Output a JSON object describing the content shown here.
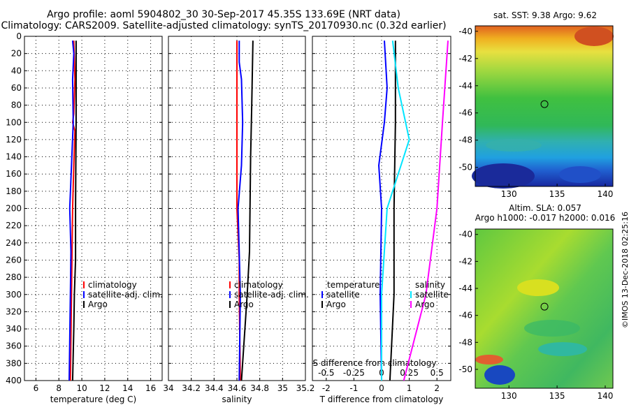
{
  "titles": {
    "line1": "Argo profile: aoml 5904802_30 30-Sep-2017 45.35S 133.69E (NRT data)",
    "line2": "Climatology: CARS2009. Satellite-adjusted climatology: synTS_20170930.nc (0.32d earlier)"
  },
  "colors": {
    "climatology": "#ff0000",
    "satellite": "#0000ff",
    "argo": "#000000",
    "satellite_diff": "#00e5ff",
    "argo_sal_diff": "#ff00ff"
  },
  "chart_data": [
    {
      "type": "line",
      "id": "temperature",
      "xlabel": "temperature (deg C)",
      "ylabel": "",
      "xlim": [
        5,
        17
      ],
      "ylim": [
        400,
        0
      ],
      "xticks": [
        "6",
        "8",
        "10",
        "12",
        "14",
        "16"
      ],
      "yticks": [
        "0",
        "20",
        "40",
        "60",
        "80",
        "100",
        "120",
        "140",
        "160",
        "180",
        "200",
        "220",
        "240",
        "260",
        "280",
        "300",
        "320",
        "340",
        "360",
        "380",
        "400"
      ],
      "legend": [
        "climatology",
        "satellite-adj. clim.",
        "Argo"
      ],
      "series": [
        {
          "name": "climatology",
          "depth": [
            5,
            50,
            90,
            100,
            110,
            150,
            200,
            300,
            400
          ],
          "values": [
            9.3,
            9.4,
            9.3,
            9.2,
            9.4,
            9.3,
            9.2,
            9.1,
            9.0
          ]
        },
        {
          "name": "satellite-adj. clim.",
          "depth": [
            5,
            20,
            50,
            100,
            150,
            200,
            250,
            300,
            400
          ],
          "values": [
            9.2,
            9.3,
            9.2,
            9.25,
            9.1,
            8.95,
            9.05,
            9.0,
            8.9
          ]
        },
        {
          "name": "Argo",
          "depth": [
            5,
            100,
            200,
            260,
            300,
            340,
            400
          ],
          "values": [
            9.5,
            9.5,
            9.45,
            9.45,
            9.35,
            9.3,
            9.2
          ]
        }
      ]
    },
    {
      "type": "line",
      "id": "salinity",
      "xlabel": "salinity",
      "ylabel": "",
      "xlim": [
        34.0,
        35.2
      ],
      "ylim": [
        400,
        0
      ],
      "xticks": [
        "34",
        "34.2",
        "34.4",
        "34.6",
        "34.8",
        "35",
        "35.2"
      ],
      "legend": [
        "climatology",
        "satellite-adj. clim.",
        "Argo"
      ],
      "series": [
        {
          "name": "climatology",
          "depth": [
            5,
            200,
            260,
            300,
            400
          ],
          "values": [
            34.6,
            34.6,
            34.62,
            34.62,
            34.63
          ]
        },
        {
          "name": "satellite-adj. clim.",
          "depth": [
            5,
            30,
            50,
            100,
            150,
            200,
            300,
            400
          ],
          "values": [
            34.62,
            34.62,
            34.64,
            34.65,
            34.64,
            34.61,
            34.63,
            34.62
          ]
        },
        {
          "name": "Argo",
          "depth": [
            5,
            80,
            140,
            250,
            300,
            400
          ],
          "values": [
            34.74,
            34.73,
            34.72,
            34.71,
            34.69,
            34.64
          ]
        }
      ]
    },
    {
      "type": "line",
      "id": "difference",
      "xlabel": "T difference from climatology",
      "top_axis_label": "S difference from climatology",
      "xlim": [
        -2.5,
        2.5
      ],
      "ylim": [
        400,
        0
      ],
      "xticks": [
        "-2",
        "-1",
        "0",
        "1",
        "2"
      ],
      "sticks": [
        "-0.5",
        "-0.25",
        "0",
        "0.25",
        "0.5"
      ],
      "legend_temperature_header": "temperature",
      "legend_salinity_header": "salinity",
      "legend": [
        "satellite",
        "Argo",
        "satellite",
        "Argo"
      ],
      "series": [
        {
          "name": "T satellite",
          "depth": [
            5,
            60,
            100,
            150,
            200,
            300,
            400
          ],
          "values": [
            0.1,
            0.2,
            0.1,
            -0.1,
            0,
            -0.05,
            0
          ]
        },
        {
          "name": "T Argo",
          "depth": [
            5,
            100,
            200,
            300,
            400
          ],
          "values": [
            0.5,
            0.5,
            0.45,
            0.45,
            0.3
          ]
        },
        {
          "name": "S satellite",
          "depth": [
            5,
            60,
            120,
            200,
            300,
            400
          ],
          "values": [
            0.1,
            0.15,
            0.25,
            0.05,
            0.0,
            0.0
          ]
        },
        {
          "name": "S Argo",
          "depth": [
            5,
            100,
            200,
            300,
            400
          ],
          "values": [
            0.6,
            0.55,
            0.5,
            0.4,
            0.2
          ]
        }
      ]
    },
    {
      "type": "heatmap",
      "id": "sst_map",
      "title": "sat. SST: 9.38 Argo: 9.62",
      "xticks": [
        "130",
        "135",
        "140"
      ],
      "yticks": [
        "-40",
        "-42",
        "-44",
        "-46",
        "-48",
        "-50"
      ],
      "float_position": {
        "lon": 133.69,
        "lat": -45.35
      }
    },
    {
      "type": "heatmap",
      "id": "sla_map",
      "title_line1": "Altim. SLA: 0.057",
      "title_line2": "Argo h1000: -0.017 h2000: 0.016",
      "xticks": [
        "130",
        "135",
        "140"
      ],
      "yticks": [
        "-40",
        "-42",
        "-44",
        "-46",
        "-48",
        "-50"
      ],
      "float_position": {
        "lon": 133.69,
        "lat": -45.35
      }
    }
  ],
  "credit": "©IMOS 13-Dec-2018 02:25:16"
}
